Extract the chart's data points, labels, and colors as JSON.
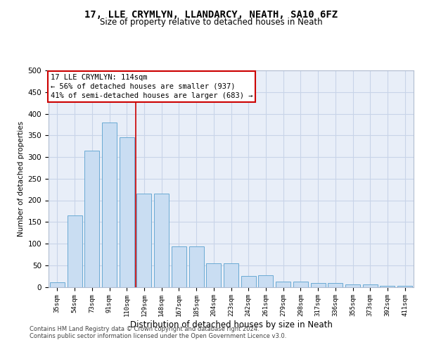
{
  "title": "17, LLE CRYMLYN, LLANDARCY, NEATH, SA10 6FZ",
  "subtitle": "Size of property relative to detached houses in Neath",
  "xlabel": "Distribution of detached houses by size in Neath",
  "ylabel": "Number of detached properties",
  "categories": [
    "35sqm",
    "54sqm",
    "73sqm",
    "91sqm",
    "110sqm",
    "129sqm",
    "148sqm",
    "167sqm",
    "185sqm",
    "204sqm",
    "223sqm",
    "242sqm",
    "261sqm",
    "279sqm",
    "298sqm",
    "317sqm",
    "336sqm",
    "355sqm",
    "373sqm",
    "392sqm",
    "411sqm"
  ],
  "values": [
    10,
    165,
    315,
    380,
    345,
    215,
    215,
    93,
    93,
    55,
    55,
    25,
    27,
    12,
    13,
    9,
    9,
    6,
    6,
    3,
    3
  ],
  "bar_color": "#c9ddf2",
  "bar_edge_color": "#6aaad4",
  "grid_color": "#c8d4e8",
  "background_color": "#e8eef8",
  "annotation_text": "17 LLE CRYMLYN: 114sqm\n← 56% of detached houses are smaller (937)\n41% of semi-detached houses are larger (683) →",
  "vline_x": 4.5,
  "vline_color": "#cc0000",
  "ylim": [
    0,
    500
  ],
  "yticks": [
    0,
    50,
    100,
    150,
    200,
    250,
    300,
    350,
    400,
    450,
    500
  ],
  "footer_line1": "Contains HM Land Registry data © Crown copyright and database right 2024.",
  "footer_line2": "Contains public sector information licensed under the Open Government Licence v3.0."
}
